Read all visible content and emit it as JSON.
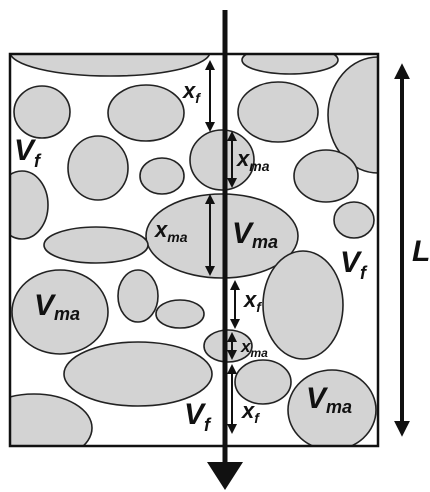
{
  "labels": {
    "Vf_left": {
      "main": "V",
      "sub": "f"
    },
    "Vf_right": {
      "main": "V",
      "sub": "f"
    },
    "Vf_bottom": {
      "main": "V",
      "sub": "f"
    },
    "Vma_center": {
      "main": "V",
      "sub": "ma"
    },
    "Vma_left": {
      "main": "V",
      "sub": "ma"
    },
    "Vma_bottom": {
      "main": "V",
      "sub": "ma"
    },
    "L": "L",
    "xf_top": {
      "main": "x",
      "sub": "f"
    },
    "xma_upper": {
      "main": "x",
      "sub": "ma"
    },
    "xma_center": {
      "main": "x",
      "sub": "ma"
    },
    "xf_mid": {
      "main": "x",
      "sub": "f"
    },
    "xma_small": {
      "main": "x",
      "sub": "ma"
    },
    "xf_bottom": {
      "main": "x",
      "sub": "f"
    }
  },
  "colors": {
    "particle_fill": "#d3d3d3",
    "outline": "#222222"
  }
}
